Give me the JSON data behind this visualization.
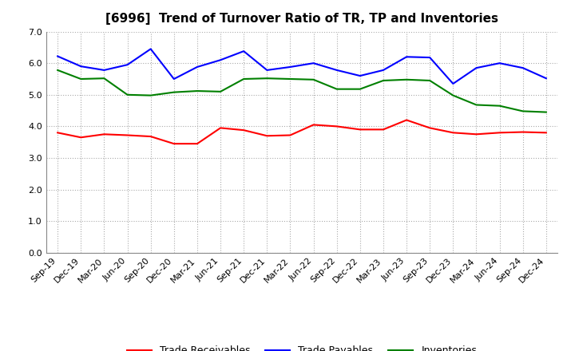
{
  "title": "[6996]  Trend of Turnover Ratio of TR, TP and Inventories",
  "x_labels": [
    "Sep-19",
    "Dec-19",
    "Mar-20",
    "Jun-20",
    "Sep-20",
    "Dec-20",
    "Mar-21",
    "Jun-21",
    "Sep-21",
    "Dec-21",
    "Mar-22",
    "Jun-22",
    "Sep-22",
    "Dec-22",
    "Mar-23",
    "Jun-23",
    "Sep-23",
    "Dec-23",
    "Mar-24",
    "Jun-24",
    "Sep-24",
    "Dec-24"
  ],
  "trade_receivables": [
    3.8,
    3.65,
    3.75,
    3.72,
    3.68,
    3.45,
    3.45,
    3.95,
    3.88,
    3.7,
    3.72,
    4.05,
    4.0,
    3.9,
    3.9,
    4.2,
    3.95,
    3.8,
    3.75,
    3.8,
    3.82,
    3.8
  ],
  "trade_payables": [
    6.22,
    5.9,
    5.78,
    5.95,
    6.45,
    5.5,
    5.88,
    6.1,
    6.38,
    5.78,
    5.88,
    6.0,
    5.78,
    5.6,
    5.78,
    6.2,
    6.18,
    5.35,
    5.85,
    6.0,
    5.85,
    5.52
  ],
  "inventories": [
    5.78,
    5.5,
    5.52,
    5.0,
    4.98,
    5.08,
    5.12,
    5.1,
    5.5,
    5.52,
    5.5,
    5.48,
    5.18,
    5.18,
    5.45,
    5.48,
    5.45,
    4.98,
    4.68,
    4.65,
    4.48,
    4.45
  ],
  "tr_color": "#ff0000",
  "tp_color": "#0000ff",
  "inv_color": "#008000",
  "tr_label": "Trade Receivables",
  "tp_label": "Trade Payables",
  "inv_label": "Inventories",
  "ylim": [
    0.0,
    7.0
  ],
  "yticks": [
    0.0,
    1.0,
    2.0,
    3.0,
    4.0,
    5.0,
    6.0,
    7.0
  ],
  "background_color": "#ffffff",
  "grid_color": "#aaaaaa",
  "title_fontsize": 11,
  "legend_fontsize": 9,
  "tick_fontsize": 8
}
